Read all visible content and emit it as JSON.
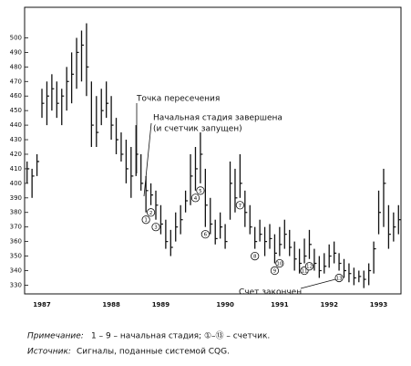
{
  "chart_data": {
    "type": "ohlc",
    "annotations": [
      "Точка пересечения",
      "Начальная стадия завершена",
      "(и счетчик запущен)",
      "Счет закончен"
    ],
    "notes": [
      [
        "Примечание:",
        "1 – 9 – начальная стадия; ①–⑬ – счетчик."
      ],
      [
        "Источник:",
        "Сигналы, поданные системой CQG."
      ]
    ],
    "categories": [
      null,
      null,
      null,
      "1987",
      null,
      null,
      null,
      null,
      null,
      null,
      null,
      null,
      null,
      null,
      null,
      null,
      null,
      "1988",
      null,
      null,
      null,
      null,
      null,
      null,
      null,
      null,
      null,
      "1989",
      null,
      null,
      null,
      null,
      null,
      null,
      null,
      null,
      null,
      null,
      null,
      null,
      "1990",
      null,
      null,
      null,
      null,
      null,
      null,
      null,
      null,
      null,
      null,
      "1991",
      null,
      null,
      null,
      null,
      null,
      null,
      null,
      null,
      null,
      "1992",
      null,
      null,
      null,
      null,
      null,
      null,
      null,
      null,
      null,
      "1993",
      null,
      null,
      null,
      null
    ],
    "high": [
      415,
      410,
      420,
      465,
      470,
      475,
      470,
      465,
      480,
      490,
      500,
      505,
      510,
      470,
      460,
      465,
      470,
      460,
      445,
      435,
      430,
      425,
      440,
      420,
      405,
      400,
      395,
      385,
      375,
      368,
      380,
      385,
      395,
      420,
      425,
      435,
      410,
      390,
      375,
      380,
      372,
      415,
      410,
      420,
      395,
      385,
      370,
      375,
      370,
      372,
      365,
      370,
      375,
      368,
      360,
      355,
      362,
      368,
      355,
      350,
      352,
      358,
      360,
      352,
      348,
      345,
      342,
      340,
      340,
      345,
      360,
      395,
      410,
      385,
      380,
      385
    ],
    "low": [
      400,
      390,
      405,
      445,
      440,
      450,
      445,
      440,
      450,
      455,
      465,
      470,
      460,
      425,
      425,
      440,
      445,
      430,
      420,
      415,
      400,
      390,
      405,
      395,
      380,
      385,
      375,
      365,
      355,
      350,
      360,
      365,
      380,
      385,
      395,
      400,
      370,
      365,
      358,
      362,
      355,
      375,
      380,
      390,
      370,
      365,
      355,
      360,
      350,
      355,
      345,
      350,
      355,
      350,
      340,
      338,
      345,
      348,
      340,
      335,
      338,
      342,
      345,
      340,
      335,
      332,
      330,
      332,
      328,
      330,
      338,
      365,
      370,
      355,
      360,
      365
    ],
    "close": [
      410,
      405,
      415,
      455,
      460,
      465,
      455,
      460,
      470,
      475,
      490,
      495,
      480,
      440,
      435,
      450,
      455,
      440,
      430,
      420,
      410,
      405,
      420,
      400,
      395,
      392,
      385,
      372,
      360,
      356,
      370,
      375,
      388,
      405,
      410,
      420,
      385,
      372,
      362,
      370,
      360,
      400,
      390,
      400,
      380,
      370,
      360,
      365,
      360,
      362,
      352,
      358,
      365,
      356,
      348,
      345,
      350,
      358,
      345,
      340,
      343,
      350,
      352,
      345,
      340,
      338,
      335,
      336,
      334,
      340,
      355,
      380,
      400,
      365,
      370,
      375
    ],
    "count_labels": [
      null,
      null,
      null,
      null,
      null,
      null,
      null,
      null,
      null,
      null,
      null,
      null,
      null,
      null,
      null,
      null,
      null,
      null,
      null,
      null,
      null,
      null,
      null,
      null,
      "1",
      "2",
      "3",
      null,
      null,
      null,
      null,
      null,
      null,
      null,
      "4",
      "5",
      "6",
      null,
      null,
      null,
      null,
      null,
      null,
      "7",
      null,
      null,
      "8",
      null,
      null,
      null,
      "9",
      "10",
      null,
      null,
      null,
      null,
      "11",
      "12",
      null,
      null,
      null,
      null,
      null,
      "13",
      null,
      null,
      null,
      null,
      null,
      null,
      null,
      null,
      null,
      null,
      null,
      null
    ],
    "color": "#111",
    "ylim": [
      324,
      521
    ],
    "yticks": [
      330,
      340,
      350,
      360,
      370,
      380,
      390,
      400,
      410,
      420,
      430,
      440,
      450,
      460,
      470,
      480,
      490,
      500
    ]
  }
}
